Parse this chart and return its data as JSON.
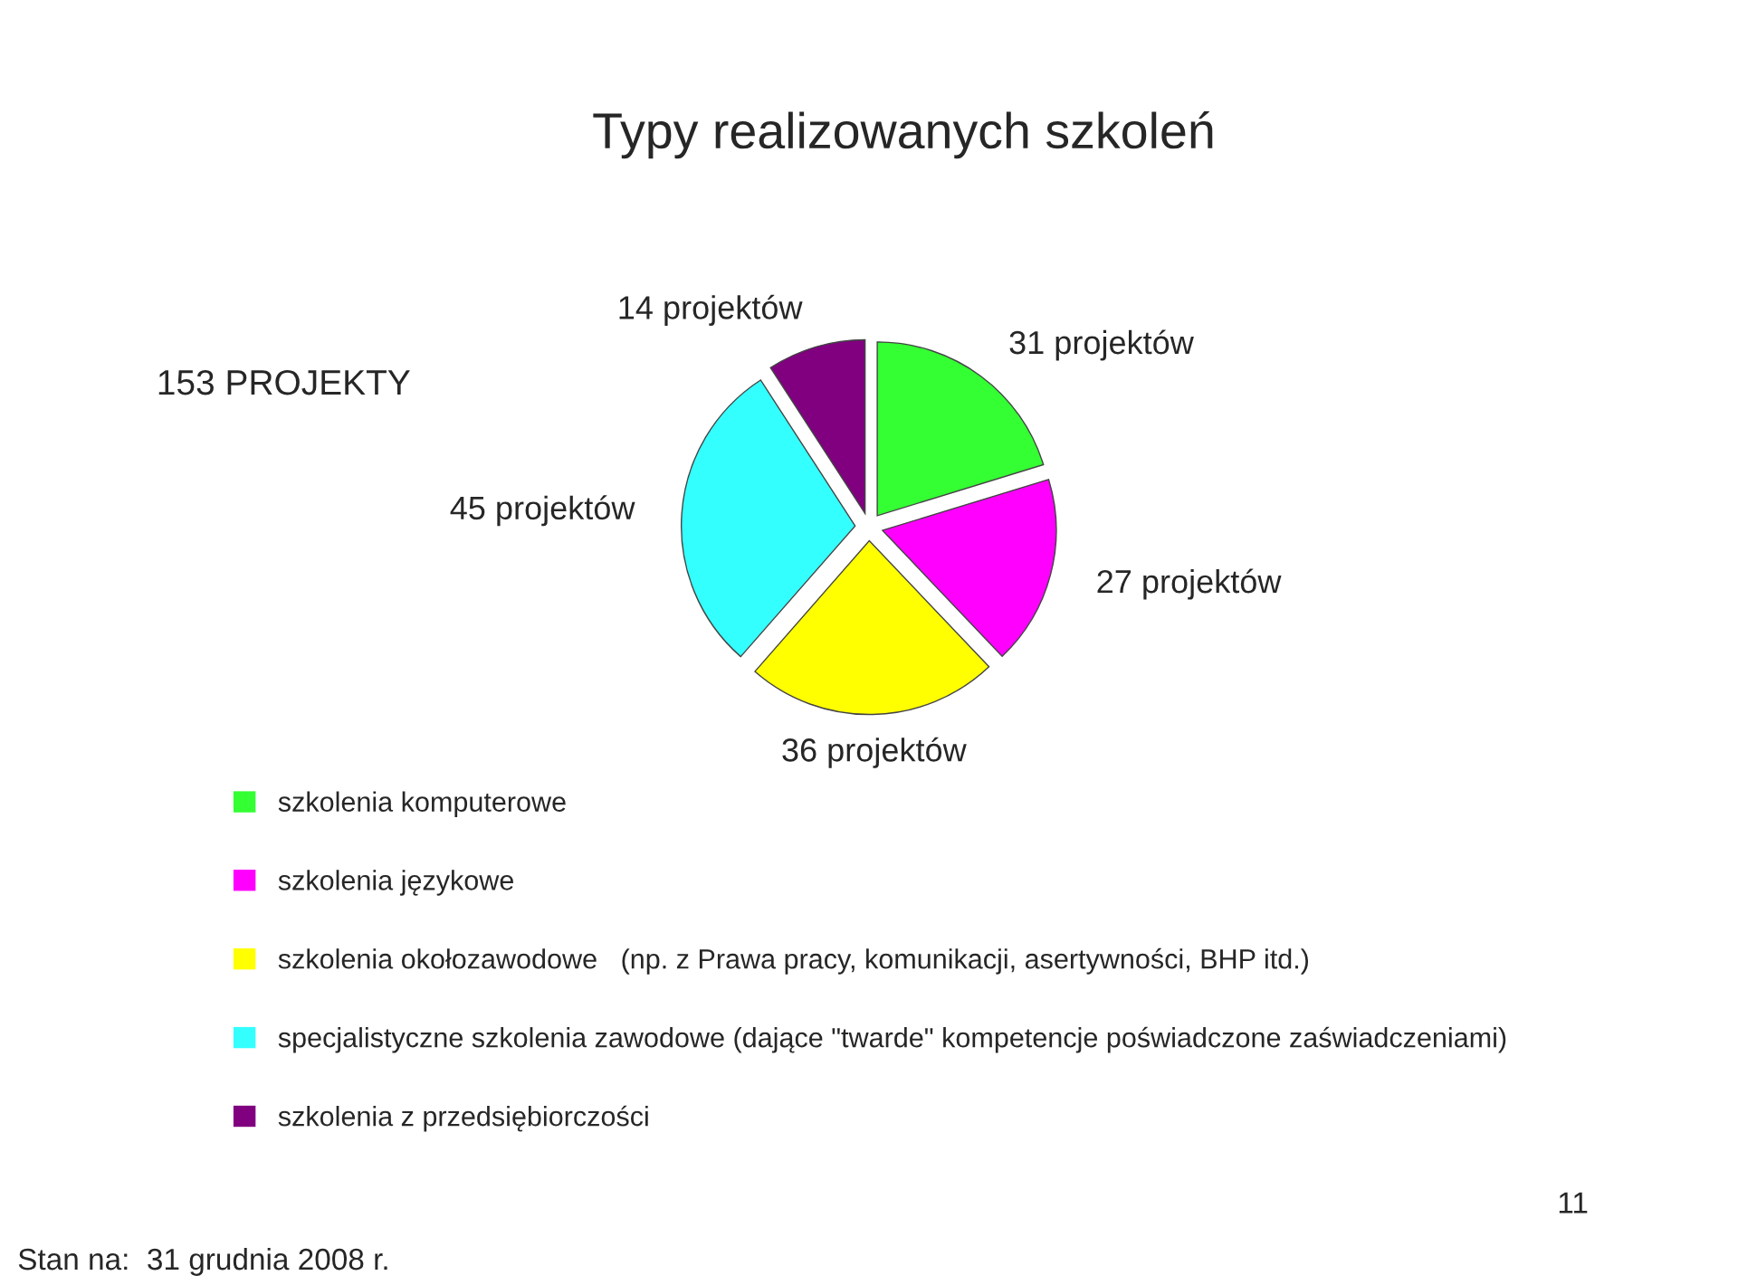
{
  "chart_data": {
    "type": "pie",
    "title": "Typy realizowanych szkoleń",
    "categories": [
      "szkolenia komputerowe",
      "szkolenia językowe",
      "szkolenia okołozawodowe   (np. z Prawa pracy, komunikacji, asertywności, BHP itd.)",
      "specjalistyczne szkolenia zawodowe (dające \"twarde\" kompetencje poświadczone zaświadczeniami)",
      "szkolenia z przedsiębiorczości"
    ],
    "values": [
      31,
      27,
      36,
      45,
      14
    ],
    "value_labels": [
      "31 projektów",
      "27 projektów",
      "36 projektów",
      "45 projektów",
      "14 projektów"
    ],
    "colors": [
      "#33ff33",
      "#ff00ff",
      "#ffff00",
      "#33ffff",
      "#800080"
    ],
    "legend": "bottom left",
    "annotations": [
      "153 PROJEKTY",
      "Stan na:  31 grudnia 2008 r.",
      "11"
    ]
  }
}
